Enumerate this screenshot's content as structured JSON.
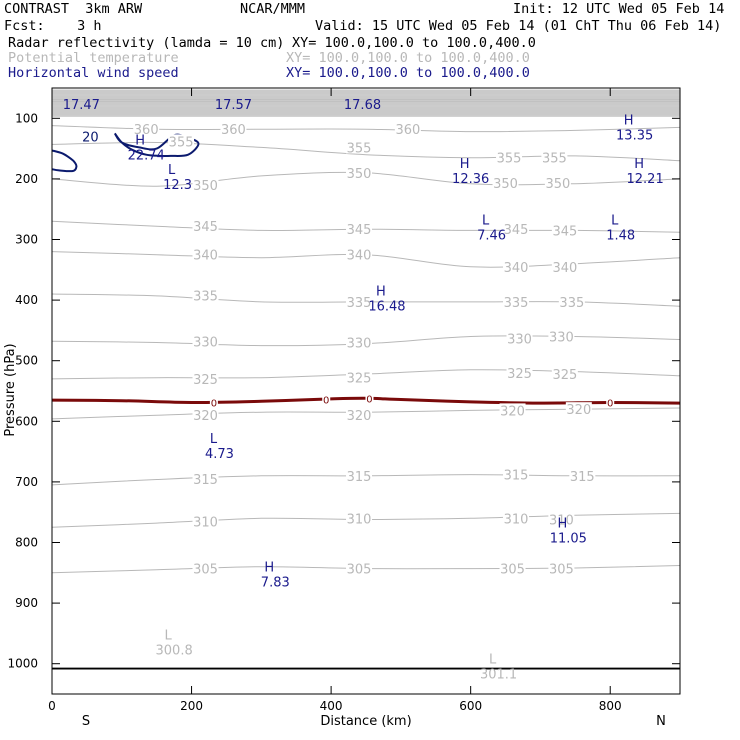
{
  "header": {
    "model": "CONTRAST  3km ARW",
    "center": "NCAR/MMM",
    "init": "Init: 12 UTC Wed 05 Feb 14",
    "fcst": "Fcst:    3 h",
    "valid": "Valid: 15 UTC Wed 05 Feb 14 (01 ChT Thu 06 Feb 14)",
    "fields": [
      {
        "name": "Radar reflectivity (lamda = 10 cm)",
        "xy": "XY= 100.0,100.0 to 100.0,400.0",
        "color": "#000000"
      },
      {
        "name": "Potential temperature",
        "xy": "XY= 100.0,100.0 to 100.0,400.0",
        "color": "#b8b8b8"
      },
      {
        "name": "Horizontal wind speed",
        "xy": "XY= 100.0,100.0 to 100.0,400.0",
        "color": "#1a1a8c"
      }
    ]
  },
  "chart_data": {
    "type": "cross-section",
    "xlabel": "Distance (km)",
    "ylabel": "Pressure (hPa)",
    "xlim": [
      0,
      900
    ],
    "ylim": [
      1050,
      50
    ],
    "x_ticks": [
      0,
      200,
      400,
      600,
      800
    ],
    "y_ticks": [
      100,
      200,
      300,
      400,
      500,
      600,
      700,
      800,
      900,
      1000
    ],
    "end_labels": {
      "left": "S",
      "right": "N"
    },
    "theta_contours": [
      {
        "level": 305,
        "x": [
          0,
          150,
          300,
          450,
          600,
          750,
          900
        ],
        "p": [
          850,
          845,
          840,
          843,
          843,
          842,
          838
        ]
      },
      {
        "level": 310,
        "x": [
          0,
          150,
          300,
          450,
          600,
          750,
          900
        ],
        "p": [
          775,
          768,
          760,
          762,
          760,
          755,
          752
        ]
      },
      {
        "level": 315,
        "x": [
          0,
          150,
          300,
          450,
          600,
          750,
          900
        ],
        "p": [
          705,
          696,
          690,
          690,
          688,
          690,
          690
        ]
      },
      {
        "level": 320,
        "x": [
          0,
          150,
          300,
          450,
          600,
          750,
          900
        ],
        "p": [
          596,
          590,
          585,
          585,
          582,
          580,
          578
        ]
      },
      {
        "level": 325,
        "x": [
          0,
          150,
          300,
          450,
          600,
          750,
          900
        ],
        "p": [
          530,
          528,
          528,
          522,
          515,
          518,
          525
        ]
      },
      {
        "level": 330,
        "x": [
          0,
          150,
          300,
          450,
          600,
          750,
          900
        ],
        "p": [
          468,
          470,
          475,
          472,
          460,
          460,
          465
        ]
      },
      {
        "level": 335,
        "x": [
          0,
          150,
          300,
          450,
          600,
          750,
          900
        ],
        "p": [
          390,
          393,
          403,
          403,
          403,
          403,
          410
        ]
      },
      {
        "level": 340,
        "x": [
          0,
          150,
          300,
          450,
          600,
          750,
          900
        ],
        "p": [
          320,
          325,
          330,
          325,
          345,
          340,
          330
        ]
      },
      {
        "level": 345,
        "x": [
          0,
          150,
          300,
          450,
          600,
          750,
          900
        ],
        "p": [
          270,
          278,
          285,
          283,
          285,
          285,
          288
        ]
      },
      {
        "level": 350,
        "x": [
          0,
          150,
          300,
          450,
          600,
          750,
          900
        ],
        "p": [
          200,
          212,
          195,
          190,
          208,
          208,
          200
        ]
      },
      {
        "level": 355,
        "x": [
          0,
          150,
          300,
          450,
          600,
          750,
          900
        ],
        "p": [
          143,
          140,
          148,
          160,
          165,
          162,
          170
        ]
      },
      {
        "level": 360,
        "x": [
          0,
          150,
          300,
          450,
          600,
          750,
          900
        ],
        "p": [
          112,
          118,
          118,
          118,
          122,
          120,
          115
        ]
      }
    ],
    "theta_labels": [
      {
        "text": "305",
        "x": 220,
        "p": 843
      },
      {
        "text": "305",
        "x": 440,
        "p": 843
      },
      {
        "text": "305",
        "x": 660,
        "p": 843
      },
      {
        "text": "305",
        "x": 730,
        "p": 843
      },
      {
        "text": "310",
        "x": 220,
        "p": 765
      },
      {
        "text": "310",
        "x": 440,
        "p": 760
      },
      {
        "text": "310",
        "x": 665,
        "p": 760
      },
      {
        "text": "310",
        "x": 730,
        "p": 762
      },
      {
        "text": "315",
        "x": 220,
        "p": 695
      },
      {
        "text": "315",
        "x": 440,
        "p": 690
      },
      {
        "text": "315",
        "x": 665,
        "p": 688
      },
      {
        "text": "315",
        "x": 760,
        "p": 690
      },
      {
        "text": "320",
        "x": 220,
        "p": 590
      },
      {
        "text": "320",
        "x": 440,
        "p": 590
      },
      {
        "text": "320",
        "x": 660,
        "p": 582
      },
      {
        "text": "320",
        "x": 755,
        "p": 580
      },
      {
        "text": "325",
        "x": 220,
        "p": 530
      },
      {
        "text": "325",
        "x": 440,
        "p": 528
      },
      {
        "text": "325",
        "x": 670,
        "p": 520
      },
      {
        "text": "325",
        "x": 735,
        "p": 522
      },
      {
        "text": "330",
        "x": 220,
        "p": 468
      },
      {
        "text": "330",
        "x": 440,
        "p": 470
      },
      {
        "text": "330",
        "x": 670,
        "p": 463
      },
      {
        "text": "330",
        "x": 730,
        "p": 460
      },
      {
        "text": "335",
        "x": 220,
        "p": 392
      },
      {
        "text": "335",
        "x": 440,
        "p": 403
      },
      {
        "text": "335",
        "x": 665,
        "p": 403
      },
      {
        "text": "335",
        "x": 745,
        "p": 403
      },
      {
        "text": "340",
        "x": 220,
        "p": 325
      },
      {
        "text": "340",
        "x": 440,
        "p": 325
      },
      {
        "text": "340",
        "x": 665,
        "p": 345
      },
      {
        "text": "340",
        "x": 735,
        "p": 345
      },
      {
        "text": "345",
        "x": 220,
        "p": 278
      },
      {
        "text": "345",
        "x": 440,
        "p": 283
      },
      {
        "text": "345",
        "x": 665,
        "p": 283
      },
      {
        "text": "345",
        "x": 735,
        "p": 285
      },
      {
        "text": "350",
        "x": 220,
        "p": 210
      },
      {
        "text": "350",
        "x": 440,
        "p": 190
      },
      {
        "text": "350",
        "x": 650,
        "p": 207
      },
      {
        "text": "350",
        "x": 725,
        "p": 207
      },
      {
        "text": "355",
        "x": 185,
        "p": 138
      },
      {
        "text": "355",
        "x": 440,
        "p": 148
      },
      {
        "text": "355",
        "x": 655,
        "p": 165
      },
      {
        "text": "355",
        "x": 720,
        "p": 165
      },
      {
        "text": "360",
        "x": 135,
        "p": 118
      },
      {
        "text": "360",
        "x": 260,
        "p": 118
      },
      {
        "text": "360",
        "x": 510,
        "p": 118
      }
    ],
    "zero_dbz_line": {
      "label": "0",
      "x": [
        0,
        100,
        200,
        300,
        400,
        450,
        500,
        600,
        700,
        800,
        900
      ],
      "p": [
        565,
        566,
        569,
        567,
        563,
        562,
        564,
        568,
        570,
        569,
        570
      ]
    },
    "zero_dbz_labels": [
      {
        "x": 232,
        "p": 569
      },
      {
        "x": 393,
        "p": 564
      },
      {
        "x": 455,
        "p": 562
      },
      {
        "x": 800,
        "p": 569
      }
    ],
    "wind_contours": [
      {
        "label": "20",
        "x": [
          90,
          100,
          115,
          135,
          155,
          170,
          195,
          210,
          195,
          175,
          150,
          125,
          100,
          90
        ],
        "p": [
          125,
          140,
          152,
          160,
          162,
          162,
          160,
          142,
          132,
          128,
          150,
          148,
          140,
          125
        ]
      }
    ],
    "small_closed_contour": {
      "x": [
        0,
        15,
        25,
        32,
        35,
        30,
        10,
        0
      ],
      "p": [
        153,
        158,
        165,
        172,
        180,
        187,
        186,
        184
      ]
    },
    "wind_labels": [
      {
        "text": "20",
        "x": 55,
        "p": 130
      }
    ],
    "extrema": [
      {
        "type": "H",
        "value": "17.47",
        "x": 42,
        "p": 60,
        "color": "#1a1a8c",
        "showLetter": false
      },
      {
        "type": "H",
        "value": "17.57",
        "x": 260,
        "p": 60,
        "color": "#1a1a8c",
        "showLetter": false
      },
      {
        "type": "H",
        "value": "17.68",
        "x": 445,
        "p": 60,
        "color": "#1a1a8c",
        "showLetter": false
      },
      {
        "type": "H",
        "value": "13.35",
        "x": 835,
        "p": 110,
        "color": "#1a1a8c",
        "showLetter": true
      },
      {
        "type": "H",
        "value": "22.74",
        "x": 135,
        "p": 143,
        "color": "#1a1a8c",
        "showLetter": true
      },
      {
        "type": "L",
        "value": "12.3",
        "x": 180,
        "p": 192,
        "color": "#1a1a8c",
        "showLetter": true
      },
      {
        "type": "H",
        "value": "12.36",
        "x": 600,
        "p": 182,
        "color": "#1a1a8c",
        "showLetter": true
      },
      {
        "type": "H",
        "value": "12.21",
        "x": 850,
        "p": 182,
        "color": "#1a1a8c",
        "showLetter": true
      },
      {
        "type": "L",
        "value": "7.46",
        "x": 630,
        "p": 275,
        "color": "#1a1a8c",
        "showLetter": true
      },
      {
        "type": "L",
        "value": "1.48",
        "x": 815,
        "p": 275,
        "color": "#1a1a8c",
        "showLetter": true
      },
      {
        "type": "H",
        "value": "16.48",
        "x": 480,
        "p": 392,
        "color": "#1a1a8c",
        "showLetter": true
      },
      {
        "type": "L",
        "value": "4.73",
        "x": 240,
        "p": 636,
        "color": "#1a1a8c",
        "showLetter": true
      },
      {
        "type": "H",
        "value": "11.05",
        "x": 740,
        "p": 775,
        "color": "#1a1a8c",
        "showLetter": true
      },
      {
        "type": "H",
        "value": "7.83",
        "x": 320,
        "p": 848,
        "color": "#1a1a8c",
        "showLetter": true
      },
      {
        "type": "L",
        "value": "300.8",
        "x": 175,
        "p": 960,
        "color": "#b8b8b8",
        "showLetter": true
      },
      {
        "type": "L",
        "value": "301.1",
        "x": 640,
        "p": 1000,
        "color": "#b8b8b8",
        "showLetter": true
      }
    ],
    "surface_line_p": 1008
  }
}
